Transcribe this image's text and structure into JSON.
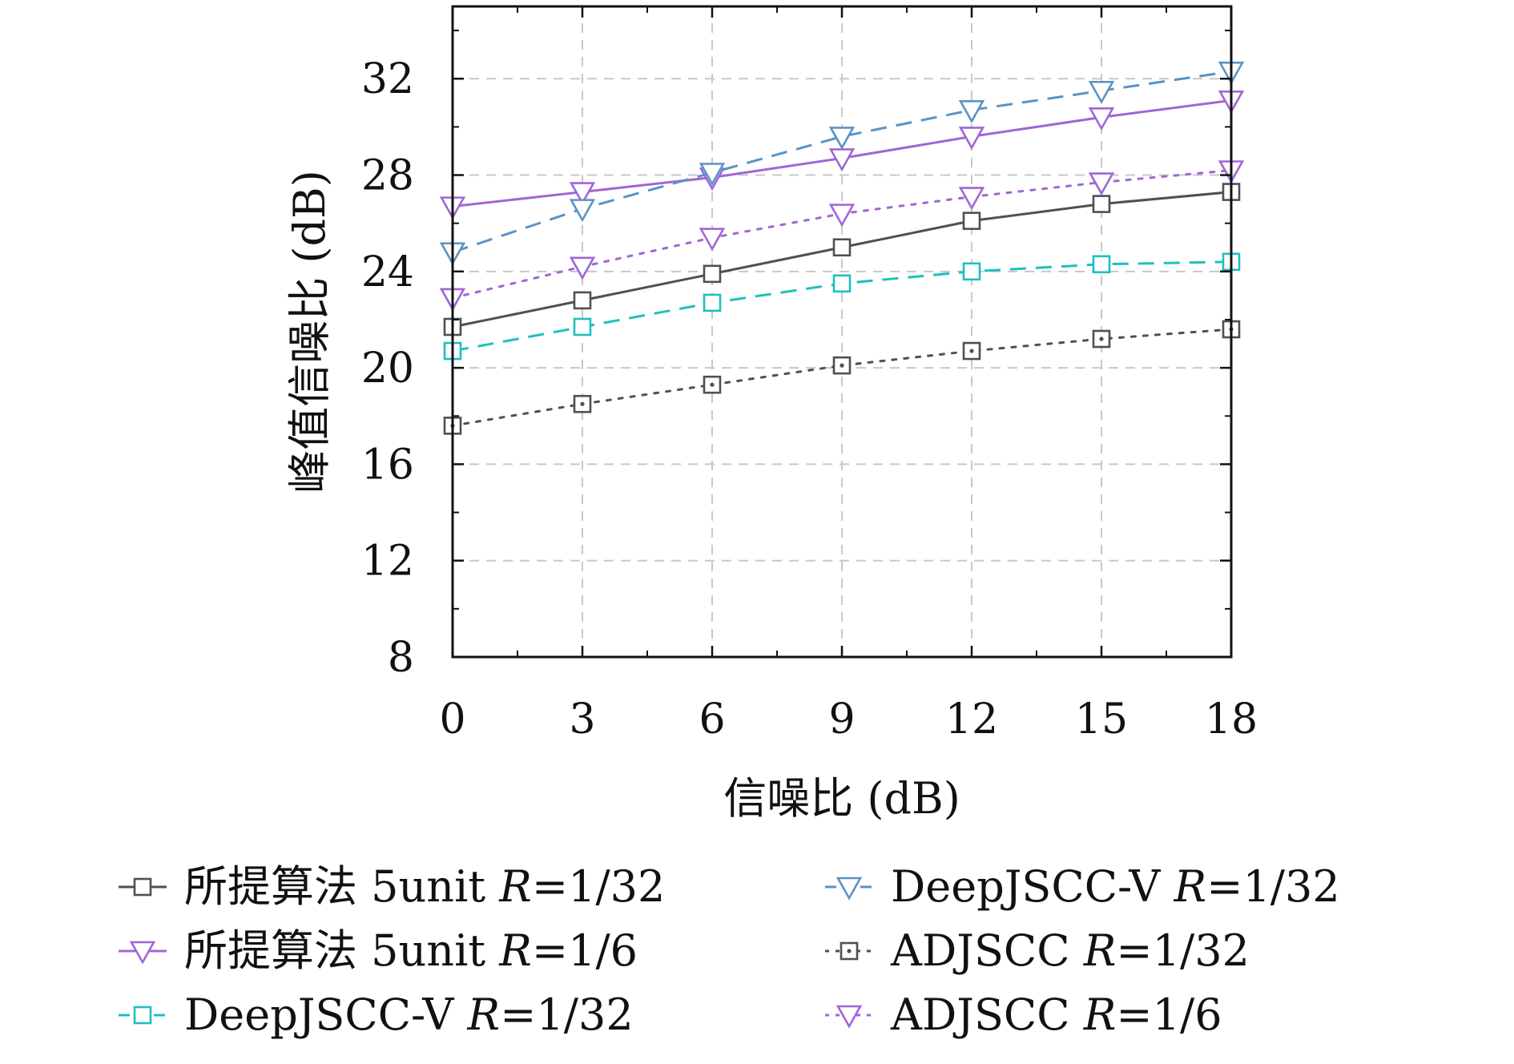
{
  "chart_data": {
    "type": "line",
    "xlabel": "信噪比 (dB)",
    "ylabel": "峰值信噪比 (dB)",
    "x": [
      0,
      3,
      6,
      9,
      12,
      15,
      18
    ],
    "x_ticks": [
      "0",
      "3",
      "6",
      "9",
      "12",
      "15",
      "18"
    ],
    "y_ticks": [
      "8",
      "12",
      "16",
      "20",
      "24",
      "28",
      "32"
    ],
    "xlim": [
      0,
      18
    ],
    "ylim": [
      8,
      35
    ],
    "grid": true,
    "legend_position": "bottom",
    "series": [
      {
        "name": "所提算法 5unit R=1/32",
        "label_main": "所提算法 5unit ",
        "label_math": "R",
        "label_rest": "=1/32",
        "color": "#505050",
        "marker": "square",
        "dash": "solid",
        "values": [
          21.7,
          22.8,
          23.9,
          25.0,
          26.1,
          26.8,
          27.3
        ]
      },
      {
        "name": "所提算法 5unit R=1/6",
        "label_main": "所提算法 5unit ",
        "label_math": "R",
        "label_rest": "=1/6",
        "color": "#a066d6",
        "marker": "triangle-down",
        "dash": "solid",
        "values": [
          26.7,
          27.3,
          27.9,
          28.7,
          29.6,
          30.4,
          31.1
        ]
      },
      {
        "name": "DeepJSCC-V R=1/32",
        "label_main": "DeepJSCC-V ",
        "label_math": "R",
        "label_rest": "=1/32",
        "color": "#1fbfbf",
        "marker": "square",
        "dash": "dashed",
        "values": [
          20.7,
          21.7,
          22.7,
          23.5,
          24.0,
          24.3,
          24.4
        ]
      },
      {
        "name": "DeepJSCC-V R=1/32",
        "label_main": "DeepJSCC-V ",
        "label_math": "R",
        "label_rest": "=1/32",
        "color": "#5b93c4",
        "marker": "triangle-down",
        "dash": "dashed",
        "values": [
          24.8,
          26.6,
          28.1,
          29.6,
          30.7,
          31.5,
          32.3
        ]
      },
      {
        "name": "ADJSCC R=1/32",
        "label_main": "ADJSCC ",
        "label_math": "R",
        "label_rest": "=1/32",
        "color": "#505050",
        "marker": "square-dot",
        "dash": "dotted",
        "values": [
          17.6,
          18.5,
          19.3,
          20.1,
          20.7,
          21.2,
          21.6
        ]
      },
      {
        "name": "ADJSCC R=1/6",
        "label_main": "ADJSCC ",
        "label_math": "R",
        "label_rest": "=1/6",
        "color": "#a066d6",
        "marker": "triangle-down",
        "dash": "dotted",
        "values": [
          22.9,
          24.2,
          25.4,
          26.4,
          27.1,
          27.7,
          28.2
        ]
      }
    ]
  }
}
